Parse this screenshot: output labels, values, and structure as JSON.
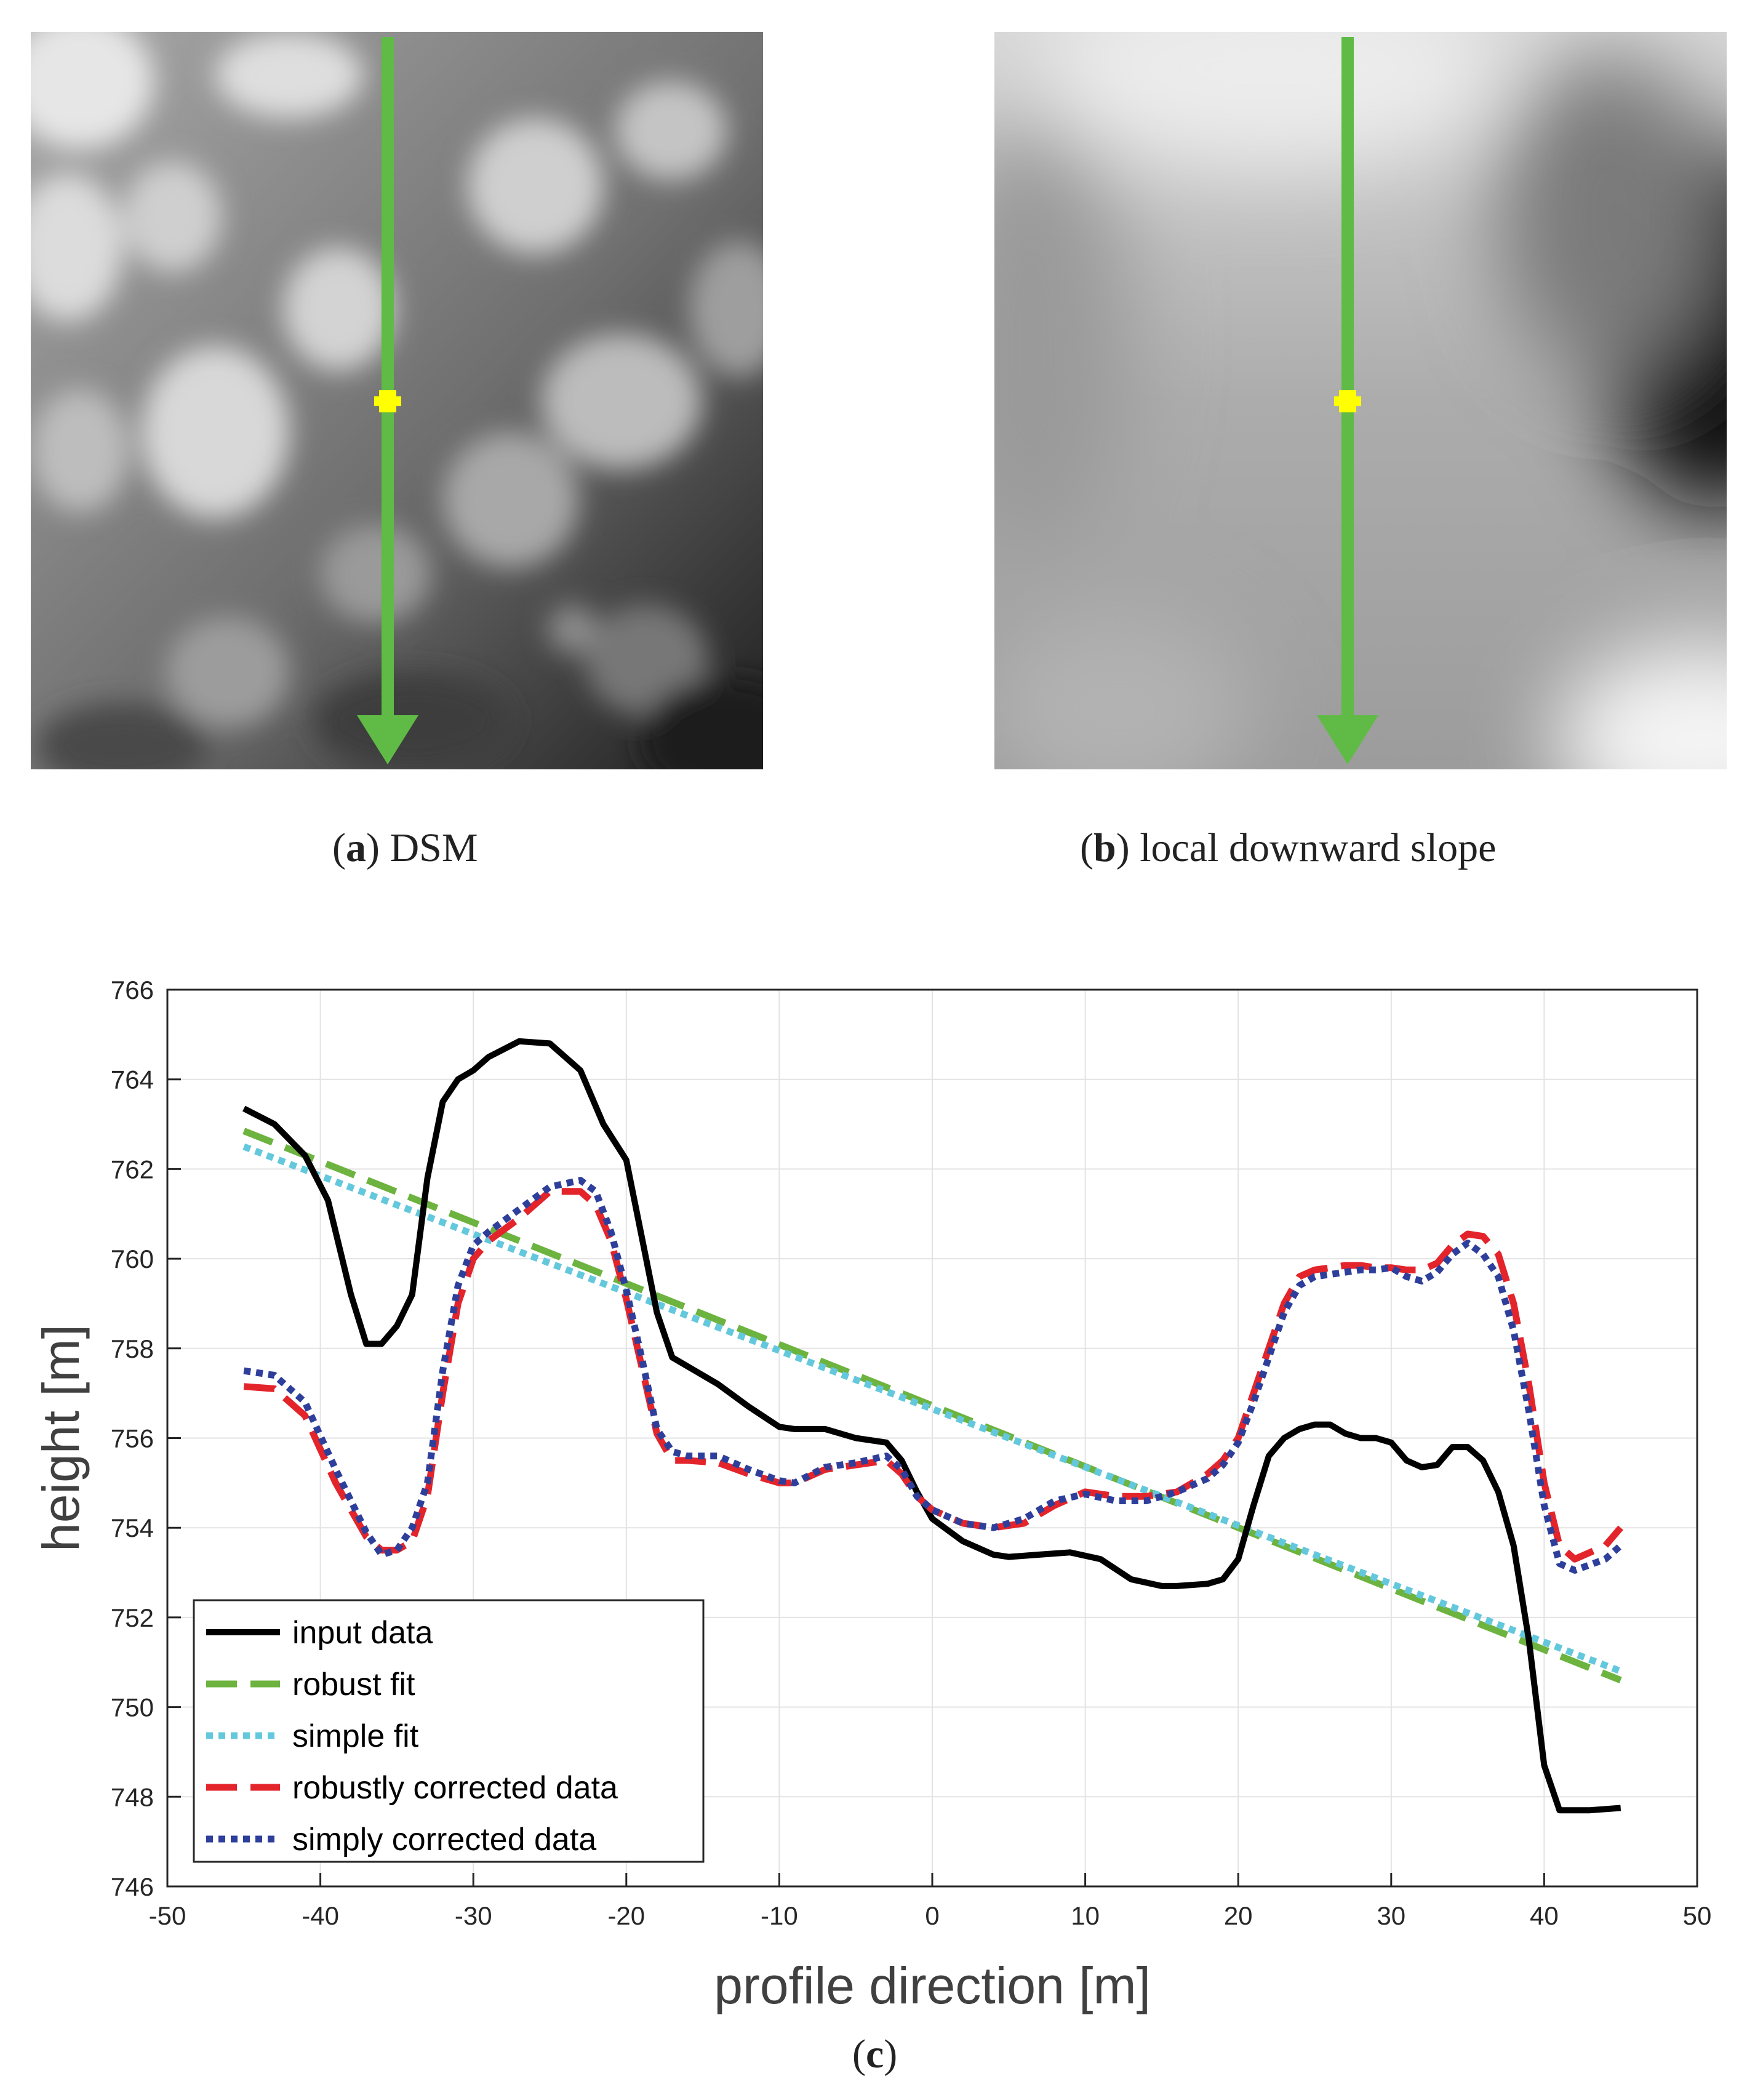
{
  "panels": {
    "a": {
      "letter": "a",
      "label": "DSM"
    },
    "b": {
      "letter": "b",
      "label": "local downward slope"
    },
    "c": {
      "letter": "c"
    }
  },
  "colors": {
    "arrow": "#5fbb46",
    "marker": "#ffff00"
  },
  "chart_data": {
    "type": "line",
    "xlabel": "profile direction [m]",
    "ylabel": "height [m]",
    "xlim": [
      -50,
      50
    ],
    "ylim": [
      746,
      766
    ],
    "xticks": [
      -50,
      -40,
      -30,
      -20,
      -10,
      0,
      10,
      20,
      30,
      40,
      50
    ],
    "yticks": [
      746,
      748,
      750,
      752,
      754,
      756,
      758,
      760,
      762,
      764,
      766
    ],
    "grid": true,
    "legend_position": "bottom-left",
    "series": [
      {
        "name": "input data",
        "color": "#000000",
        "style": "solid",
        "x": [
          -45,
          -43,
          -41,
          -39.5,
          -38,
          -37,
          -36,
          -35,
          -34,
          -33,
          -32,
          -31,
          -30,
          -29,
          -27,
          -25,
          -23,
          -21.5,
          -20,
          -19,
          -18,
          -17,
          -16,
          -14,
          -12,
          -10,
          -9,
          -7,
          -5,
          -3,
          -2,
          -1,
          0,
          2,
          4,
          5,
          7,
          9,
          11,
          13,
          15,
          16,
          18,
          19,
          20,
          21,
          22,
          23,
          24,
          25,
          26,
          27,
          28,
          29,
          30,
          31,
          32,
          33,
          34,
          35,
          36,
          37,
          38,
          39,
          40,
          41,
          43,
          45
        ],
        "y": [
          763.35,
          763,
          762.3,
          761.3,
          759.2,
          758.1,
          758.1,
          758.5,
          759.2,
          761.8,
          763.5,
          764,
          764.2,
          764.5,
          764.85,
          764.8,
          764.2,
          763,
          762.2,
          760.5,
          758.8,
          757.8,
          757.6,
          757.2,
          756.7,
          756.25,
          756.2,
          756.2,
          756,
          755.9,
          755.5,
          754.8,
          754.2,
          753.7,
          753.4,
          753.35,
          753.4,
          753.45,
          753.3,
          752.85,
          752.7,
          752.7,
          752.75,
          752.85,
          753.3,
          754.5,
          755.6,
          756,
          756.2,
          756.3,
          756.3,
          756.1,
          756,
          756,
          755.9,
          755.5,
          755.35,
          755.4,
          755.8,
          755.8,
          755.5,
          754.8,
          753.6,
          751.5,
          748.7,
          747.7,
          747.7,
          747.75
        ]
      },
      {
        "name": "robust fit",
        "color": "#6db33f",
        "style": "dashed",
        "x": [
          -45,
          45
        ],
        "y": [
          762.85,
          750.6
        ]
      },
      {
        "name": "simple fit",
        "color": "#64c8dd",
        "style": "dotted",
        "x": [
          -45,
          45
        ],
        "y": [
          762.5,
          750.8
        ]
      },
      {
        "name": "robustly corrected data",
        "color": "#e3242b",
        "style": "dashed",
        "x": [
          -45,
          -43,
          -41,
          -39,
          -37,
          -36,
          -35,
          -34,
          -33,
          -32,
          -31,
          -30,
          -29,
          -27,
          -25,
          -23,
          -22,
          -21,
          -20,
          -19,
          -18,
          -17,
          -16,
          -14,
          -12,
          -10,
          -9,
          -7,
          -5,
          -3,
          -2,
          -1,
          0,
          2,
          4,
          6,
          8,
          10,
          12,
          14,
          16,
          18,
          19,
          20,
          21,
          22,
          23,
          24,
          25,
          26,
          27,
          28,
          29,
          30,
          31,
          32,
          33,
          34,
          35,
          36,
          37,
          38,
          39,
          40,
          41,
          42,
          44,
          45
        ],
        "y": [
          757.15,
          757.1,
          756.5,
          755,
          753.8,
          753.5,
          753.5,
          753.7,
          754.7,
          757,
          759,
          760,
          760.4,
          760.9,
          761.5,
          761.5,
          761.2,
          760.4,
          759.1,
          757.6,
          756.1,
          755.5,
          755.5,
          755.45,
          755.2,
          755,
          755,
          755.3,
          755.4,
          755.5,
          755.2,
          754.7,
          754.4,
          754.1,
          754,
          754.1,
          754.5,
          754.8,
          754.7,
          754.7,
          754.8,
          755.2,
          755.5,
          756,
          757,
          758,
          759,
          759.6,
          759.75,
          759.8,
          759.85,
          759.85,
          759.8,
          759.8,
          759.75,
          759.75,
          759.9,
          760.3,
          760.55,
          760.5,
          760.1,
          759,
          757.2,
          755,
          753.6,
          753.3,
          753.6,
          754
        ]
      },
      {
        "name": "simply corrected data",
        "color": "#2e3f9b",
        "style": "dotted",
        "x": [
          -45,
          -43,
          -41,
          -39,
          -37,
          -36,
          -35,
          -34,
          -33,
          -32,
          -31,
          -30,
          -29,
          -27,
          -25,
          -23,
          -22,
          -21,
          -20,
          -19,
          -18,
          -17,
          -16,
          -14,
          -12,
          -10,
          -9,
          -7,
          -5,
          -3,
          -2,
          -1,
          0,
          2,
          4,
          6,
          8,
          10,
          12,
          14,
          16,
          18,
          19,
          20,
          21,
          22,
          23,
          24,
          25,
          26,
          27,
          28,
          29,
          30,
          31,
          32,
          33,
          34,
          35,
          36,
          37,
          38,
          39,
          40,
          41,
          42,
          44,
          45
        ],
        "y": [
          757.5,
          757.4,
          756.8,
          755.3,
          753.9,
          753.4,
          753.5,
          754,
          755,
          757.5,
          759.4,
          760.3,
          760.6,
          761.1,
          761.6,
          761.75,
          761.5,
          760.6,
          759.3,
          757.8,
          756.2,
          755.7,
          755.6,
          755.6,
          755.3,
          755.05,
          755,
          755.35,
          755.45,
          755.6,
          755.3,
          754.7,
          754.4,
          754.1,
          754,
          754.2,
          754.6,
          754.75,
          754.6,
          754.6,
          754.8,
          755.1,
          755.4,
          755.9,
          756.8,
          757.8,
          758.8,
          759.4,
          759.6,
          759.65,
          759.7,
          759.75,
          759.75,
          759.8,
          759.6,
          759.5,
          759.7,
          760.1,
          760.35,
          760.1,
          759.6,
          758.4,
          756.6,
          754.5,
          753.2,
          753.05,
          753.3,
          753.6
        ]
      }
    ]
  }
}
